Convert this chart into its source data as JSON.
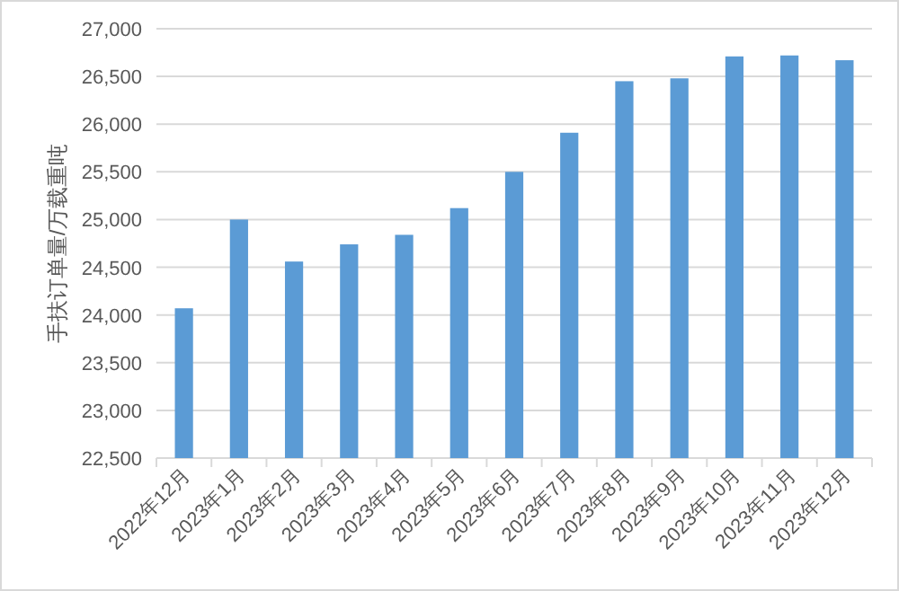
{
  "chart_data": {
    "type": "bar",
    "ylabel": "手扶订单量/万载重吨",
    "categories": [
      "2022年12月",
      "2023年1月",
      "2023年2月",
      "2023年3月",
      "2023年4月",
      "2023年5月",
      "2023年6月",
      "2023年7月",
      "2023年8月",
      "2023年9月",
      "2023年10月",
      "2023年11月",
      "2023年12月"
    ],
    "values": [
      24070,
      25000,
      24560,
      24740,
      24840,
      25120,
      25500,
      25910,
      26450,
      26480,
      26710,
      26720,
      26670
    ],
    "color": "#5b9bd5",
    "ylim": [
      22500,
      27000
    ],
    "yticks": [
      {
        "value": 22500,
        "label": "22,500"
      },
      {
        "value": 23000,
        "label": "23,000"
      },
      {
        "value": 23500,
        "label": "23,500"
      },
      {
        "value": 24000,
        "label": "24,000"
      },
      {
        "value": 24500,
        "label": "24,500"
      },
      {
        "value": 25000,
        "label": "25,000"
      },
      {
        "value": 25500,
        "label": "25,500"
      },
      {
        "value": 26000,
        "label": "26,000"
      },
      {
        "value": 26500,
        "label": "26,500"
      },
      {
        "value": 27000,
        "label": "27,000"
      }
    ],
    "grid": "y"
  }
}
